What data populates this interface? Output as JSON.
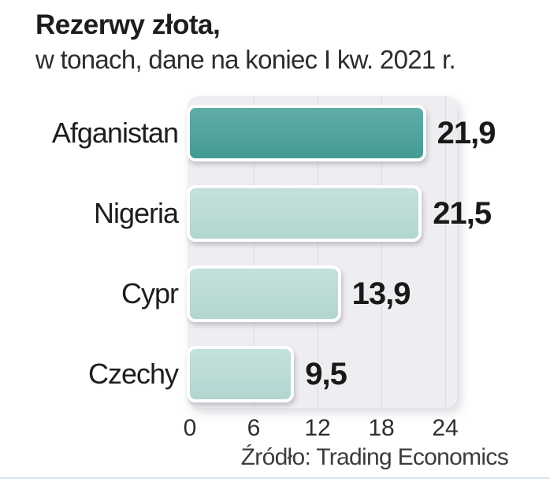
{
  "header": {
    "title": "Rezerwy złota,",
    "subtitle": "w tonach, dane na koniec I kw. 2021 r."
  },
  "footer": {
    "source": "Źródło: Trading Economics"
  },
  "colors": {
    "bar_highlight": "#46a099",
    "bar_default": "#b9dcd7",
    "bar_border": "#ffffff",
    "plot_background": "#efedf1",
    "gridline": "#dcdae0",
    "text": "#1d1d1b",
    "bottom_rule": "#dae4ec"
  },
  "chart_data": {
    "type": "bar",
    "orientation": "horizontal",
    "title": "Rezerwy złota",
    "subtitle": "w tonach, dane na koniec I kw. 2021 r.",
    "categories": [
      "Afganistan",
      "Nigeria",
      "Cypr",
      "Czechy"
    ],
    "values": [
      21.9,
      21.5,
      13.9,
      9.5
    ],
    "value_labels": [
      "21,9",
      "21,5",
      "13,9",
      "9,5"
    ],
    "highlighted_index": 0,
    "x_ticks": [
      0,
      6,
      12,
      18,
      24
    ],
    "xlim": [
      0,
      25.3
    ],
    "grid": true,
    "legend": false,
    "source": "Trading Economics"
  }
}
